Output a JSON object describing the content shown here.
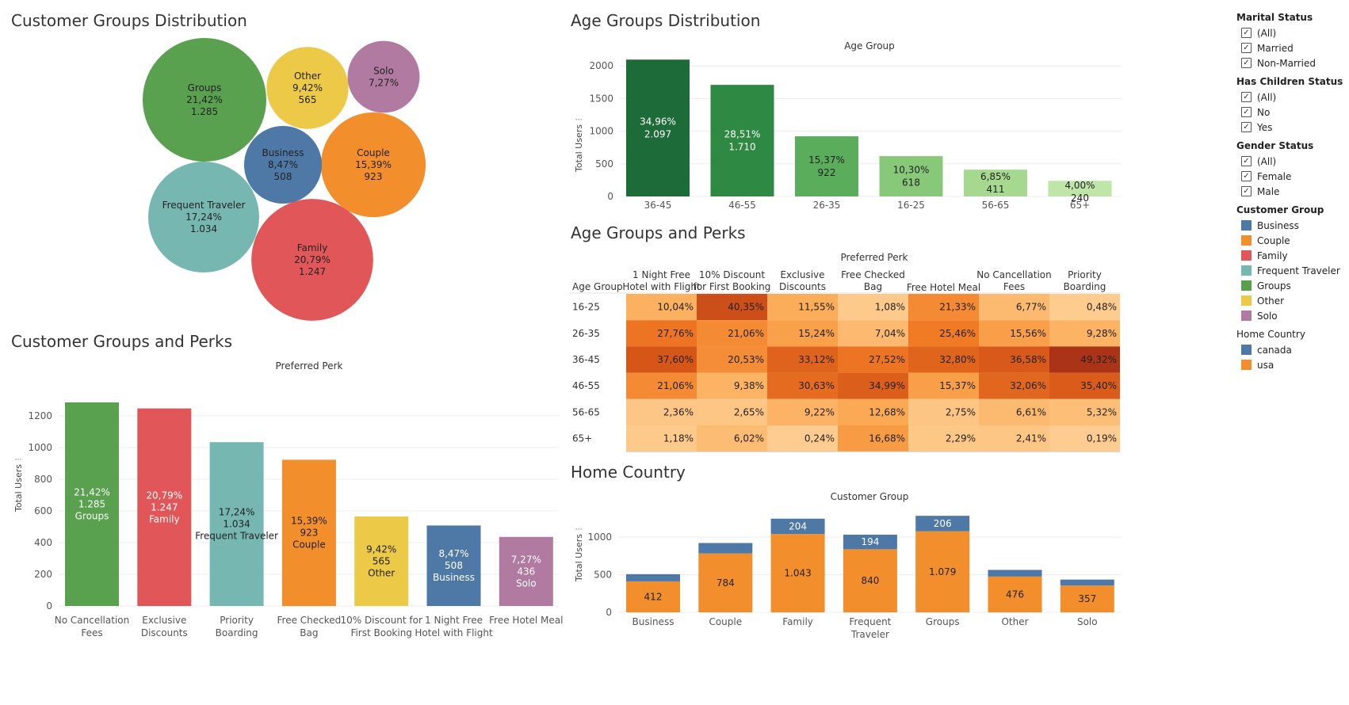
{
  "titles": {
    "customer_groups_distribution": "Customer Groups Distribution",
    "age_groups_distribution": "Age Groups Distribution",
    "customer_groups_and_perks": "Customer Groups and Perks",
    "age_groups_and_perks": "Age Groups and Perks",
    "home_country": "Home Country"
  },
  "colors": {
    "Business": "#4e79a7",
    "Couple": "#f28e2b",
    "Family": "#e15759",
    "Frequent Traveler": "#76b7b2",
    "Groups": "#59a14f",
    "Other": "#edc948",
    "Solo": "#b07aa1",
    "canada": "#4e79a7",
    "usa": "#f28e2b"
  },
  "filters": {
    "marital_status": {
      "title": "Marital Status",
      "items": [
        "(All)",
        "Married",
        "Non-Married"
      ]
    },
    "has_children_status": {
      "title": "Has Children Status",
      "items": [
        "(All)",
        "No",
        "Yes"
      ]
    },
    "gender_status": {
      "title": "Gender Status",
      "items": [
        "(All)",
        "Female",
        "Male"
      ]
    },
    "customer_group_legend": {
      "title": "Customer Group",
      "items": [
        "Business",
        "Couple",
        "Family",
        "Frequent Traveler",
        "Groups",
        "Other",
        "Solo"
      ]
    },
    "home_country_legend": {
      "title": "Home Country",
      "items": [
        "canada",
        "usa"
      ]
    }
  },
  "chart_data": [
    {
      "type": "bubble",
      "title": "Customer Groups Distribution",
      "bubbles": [
        {
          "label": "Groups",
          "percent": "21,42%",
          "value": 1285,
          "value_label": "1.285"
        },
        {
          "label": "Family",
          "percent": "20,79%",
          "value": 1247,
          "value_label": "1.247"
        },
        {
          "label": "Frequent Traveler",
          "percent": "17,24%",
          "value": 1034,
          "value_label": "1.034"
        },
        {
          "label": "Couple",
          "percent": "15,39%",
          "value": 923,
          "value_label": "923"
        },
        {
          "label": "Other",
          "percent": "9,42%",
          "value": 565,
          "value_label": "565"
        },
        {
          "label": "Business",
          "percent": "8,47%",
          "value": 508,
          "value_label": "508"
        },
        {
          "label": "Solo",
          "percent": "7,27%",
          "value": 436,
          "value_label": ""
        }
      ]
    },
    {
      "type": "bar",
      "title": "Age Groups Distribution",
      "header": "Age Group",
      "ylabel": "Total Users",
      "ylim": [
        0,
        2100
      ],
      "yticks": [
        0,
        500,
        1000,
        1500,
        2000
      ],
      "categories": [
        "36-45",
        "46-55",
        "26-35",
        "16-25",
        "56-65",
        "65+"
      ],
      "values": [
        2097,
        1710,
        922,
        618,
        411,
        240
      ],
      "value_labels": [
        "2.097",
        "1.710",
        "922",
        "618",
        "411",
        "240"
      ],
      "percent_labels": [
        "34,96%",
        "28,51%",
        "15,37%",
        "10,30%",
        "6,85%",
        "4,00%"
      ],
      "bar_colors": [
        "#1e6b3a",
        "#2e8a42",
        "#5aad5a",
        "#87c979",
        "#a6d98f",
        "#bfe6a8"
      ],
      "label_colors": [
        "#ffffff",
        "#ffffff",
        "#222222",
        "#222222",
        "#222222",
        "#222222"
      ]
    },
    {
      "type": "bar",
      "title": "Customer Groups and Perks",
      "header": "Preferred Perk",
      "ylabel": "Total Users",
      "ylim": [
        0,
        1300
      ],
      "yticks": [
        0,
        200,
        400,
        600,
        800,
        1000,
        1200
      ],
      "categories": [
        [
          "No Cancellation",
          "Fees"
        ],
        [
          "Exclusive",
          "Discounts"
        ],
        [
          "Priority",
          "Boarding"
        ],
        [
          "Free Checked",
          "Bag"
        ],
        [
          "10% Discount for",
          "First Booking"
        ],
        [
          "1 Night Free",
          "Hotel with Flight"
        ],
        [
          "Free Hotel Meal"
        ]
      ],
      "values": [
        1285,
        1247,
        1034,
        923,
        565,
        508,
        436
      ],
      "value_labels": [
        "1.285",
        "1.247",
        "1.034",
        "923",
        "565",
        "508",
        "436"
      ],
      "percent_labels": [
        "21,42%",
        "20,79%",
        "17,24%",
        "15,39%",
        "9,42%",
        "8,47%",
        "7,27%"
      ],
      "groups": [
        "Groups",
        "Family",
        "Frequent Traveler",
        "Couple",
        "Other",
        "Business",
        "Solo"
      ],
      "label_colors": [
        "#ffffff",
        "#ffffff",
        "#222222",
        "#222222",
        "#222222",
        "#ffffff",
        "#ffffff"
      ]
    },
    {
      "type": "heatmap",
      "title": "Age Groups and Perks",
      "header": "Preferred Perk",
      "row_header": "Age Group",
      "columns": [
        [
          "1 Night Free",
          "Hotel with Flight"
        ],
        [
          "10% Discount",
          "for First Booking"
        ],
        [
          "Exclusive",
          "Discounts"
        ],
        [
          "Free Checked",
          "Bag"
        ],
        [
          "Free Hotel Meal"
        ],
        [
          "No Cancellation",
          "Fees"
        ],
        [
          "Priority",
          "Boarding"
        ]
      ],
      "rows": [
        "16-25",
        "26-35",
        "36-45",
        "46-55",
        "56-65",
        "65+"
      ],
      "values": [
        [
          10.04,
          40.35,
          11.55,
          1.08,
          21.33,
          6.77,
          0.48
        ],
        [
          27.76,
          21.06,
          15.24,
          7.04,
          25.46,
          15.56,
          9.28
        ],
        [
          37.6,
          20.53,
          33.12,
          27.52,
          32.8,
          36.58,
          49.32
        ],
        [
          21.06,
          9.38,
          30.63,
          34.99,
          15.37,
          32.06,
          35.4
        ],
        [
          2.36,
          2.65,
          9.22,
          12.68,
          2.75,
          6.61,
          5.32
        ],
        [
          1.18,
          6.02,
          0.24,
          16.68,
          2.29,
          2.41,
          0.19
        ]
      ],
      "value_labels": [
        [
          "10,04%",
          "40,35%",
          "11,55%",
          "1,08%",
          "21,33%",
          "6,77%",
          "0,48%"
        ],
        [
          "27,76%",
          "21,06%",
          "15,24%",
          "7,04%",
          "25,46%",
          "15,56%",
          "9,28%"
        ],
        [
          "37,60%",
          "20,53%",
          "33,12%",
          "27,52%",
          "32,80%",
          "36,58%",
          "49,32%"
        ],
        [
          "21,06%",
          "9,38%",
          "30,63%",
          "34,99%",
          "15,37%",
          "32,06%",
          "35,40%"
        ],
        [
          "2,36%",
          "2,65%",
          "9,22%",
          "12,68%",
          "2,75%",
          "6,61%",
          "5,32%"
        ],
        [
          "1,18%",
          "6,02%",
          "0,24%",
          "16,68%",
          "2,29%",
          "2,41%",
          "0,19%"
        ]
      ]
    },
    {
      "type": "stacked-bar",
      "title": "Home Country",
      "header": "Customer Group",
      "ylabel": "Total Users",
      "ylim": [
        0,
        1350
      ],
      "yticks": [
        0,
        500,
        1000
      ],
      "categories": [
        [
          "Business"
        ],
        [
          "Couple"
        ],
        [
          "Family"
        ],
        [
          "Frequent",
          "Traveler"
        ],
        [
          "Groups"
        ],
        [
          "Other"
        ],
        [
          "Solo"
        ]
      ],
      "series": [
        {
          "name": "usa",
          "values": [
            412,
            784,
            1043,
            840,
            1079,
            476,
            357
          ],
          "labels": [
            "412",
            "784",
            "1.043",
            "840",
            "1.079",
            "476",
            "357"
          ]
        },
        {
          "name": "canada",
          "values": [
            96,
            139,
            204,
            194,
            206,
            89,
            79
          ],
          "labels": [
            "",
            "",
            "204",
            "194",
            "206",
            "",
            ""
          ]
        }
      ]
    }
  ]
}
